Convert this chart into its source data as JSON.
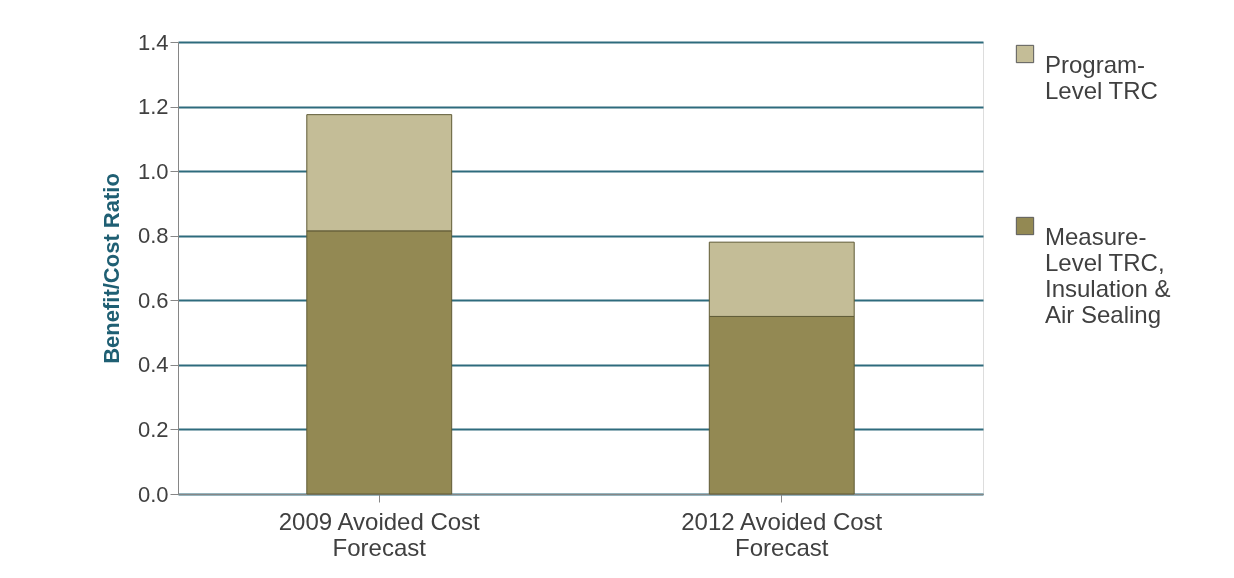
{
  "chart_data": {
    "type": "bar",
    "ylabel": "Benefit/Cost Ratio",
    "categories": [
      "2009 Avoided Cost Forecast",
      "2012 Avoided Cost Forecast"
    ],
    "stacked": true,
    "series": [
      {
        "name": "Measure-Level TRC, Insulation & Air Sealing",
        "color": "#938953",
        "values": [
          0.815,
          0.55
        ]
      },
      {
        "name": "Program-Level TRC",
        "color": "#c4bd97",
        "values": [
          0.36,
          0.23
        ]
      }
    ],
    "ylim": [
      0,
      1.4
    ],
    "yticks": [
      {
        "value": 0,
        "label": "0.0"
      },
      {
        "value": 0.2,
        "label": "0.2"
      },
      {
        "value": 0.4,
        "label": "0.4"
      },
      {
        "value": 0.6,
        "label": "0.6"
      },
      {
        "value": 0.8,
        "label": "0.8"
      },
      {
        "value": 1.0,
        "label": "1.0"
      },
      {
        "value": 1.2,
        "label": "1.2"
      },
      {
        "value": 1.4,
        "label": "1.4"
      }
    ],
    "grid": "y",
    "legend": "right"
  }
}
